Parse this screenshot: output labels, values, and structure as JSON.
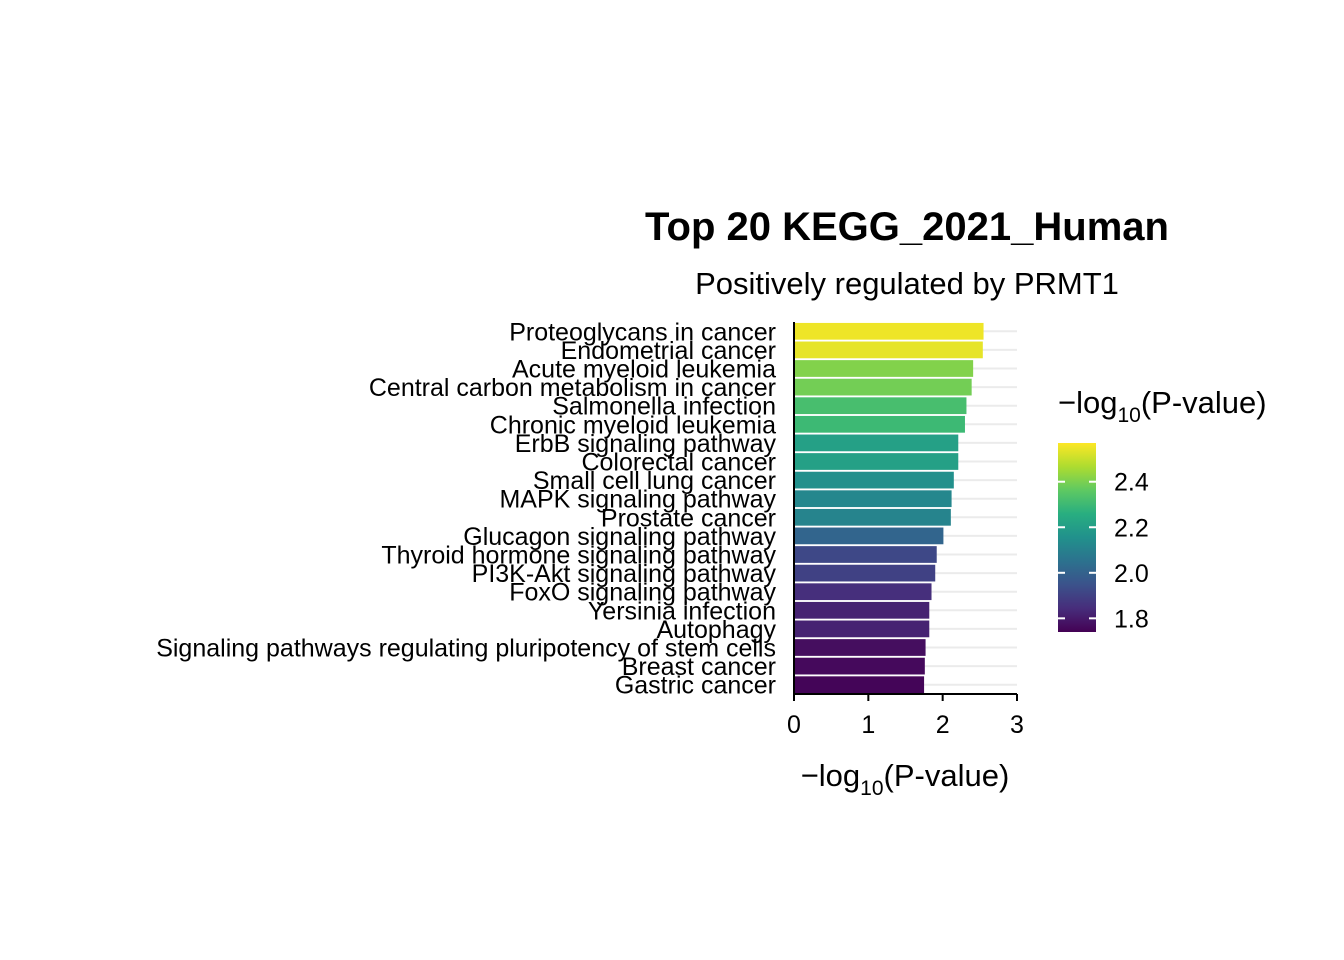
{
  "chart_data": {
    "type": "bar",
    "orientation": "horizontal",
    "title": "Top 20 KEGG_2021_Human",
    "subtitle": "Positively regulated by PRMT1",
    "xlabel": "−log₁₀(P-value)",
    "xlabel_parts": {
      "prefix": "−log",
      "sub": "10",
      "suffix": "(P-value)"
    },
    "xlim": [
      0,
      3
    ],
    "xticks": [
      0,
      1,
      2,
      3
    ],
    "categories": [
      "Proteoglycans in cancer",
      "Endometrial cancer",
      "Acute myeloid leukemia",
      "Central carbon metabolism in cancer",
      "Salmonella infection",
      "Chronic myeloid leukemia",
      "ErbB signaling pathway",
      "Colorectal cancer",
      "Small cell lung cancer",
      "MAPK signaling pathway",
      "Prostate cancer",
      "Glucagon signaling pathway",
      "Thyroid hormone signaling pathway",
      "PI3K-Akt signaling pathway",
      "FoxO signaling pathway",
      "Yersinia infection",
      "Autophagy",
      "Signaling pathways regulating pluripotency of stem cells",
      "Breast cancer",
      "Gastric cancer"
    ],
    "values": [
      2.55,
      2.54,
      2.41,
      2.39,
      2.32,
      2.3,
      2.21,
      2.21,
      2.15,
      2.12,
      2.11,
      2.01,
      1.92,
      1.9,
      1.85,
      1.82,
      1.82,
      1.77,
      1.76,
      1.75
    ],
    "colorbar": {
      "title_parts": {
        "prefix": "−log",
        "sub": "10",
        "suffix": "(P-value)"
      },
      "range": [
        1.74,
        2.57
      ],
      "ticks": [
        1.8,
        2.0,
        2.2,
        2.4
      ],
      "tick_labels": [
        "1.8",
        "2.0",
        "2.2",
        "2.4"
      ],
      "colormap": "viridis"
    },
    "grid": "horizontal-major",
    "legend_position": "right"
  }
}
